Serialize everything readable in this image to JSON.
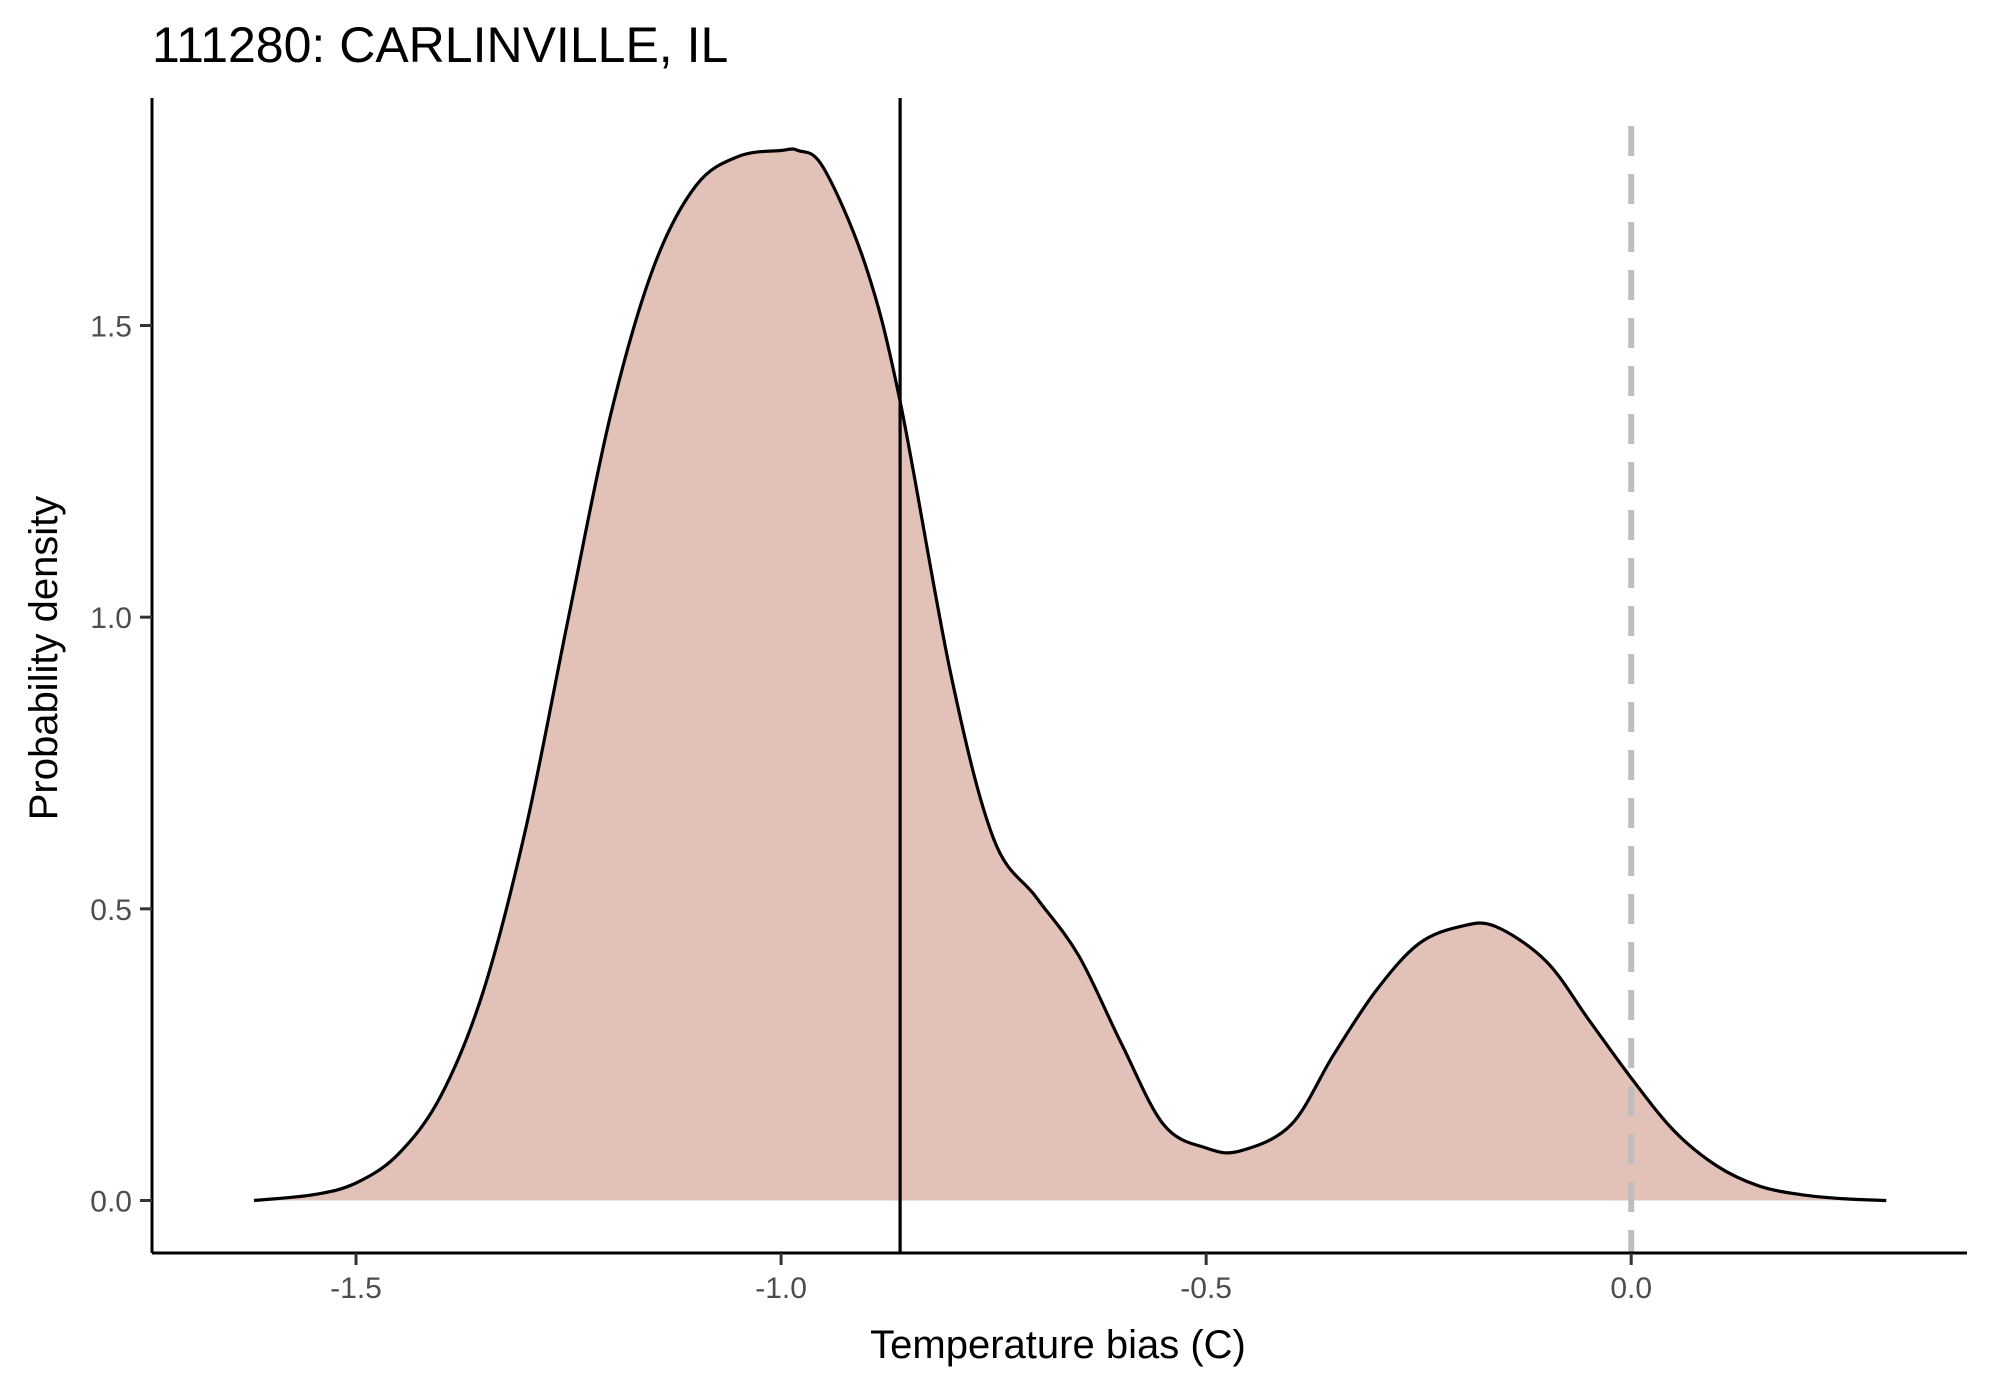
{
  "chart_data": {
    "type": "area",
    "title": "111280: CARLINVILLE, IL",
    "xlabel": "Temperature bias (C)",
    "ylabel": "Probability density",
    "xlim": [
      -1.74,
      0.395
    ],
    "ylim": [
      -0.09,
      1.89
    ],
    "x_ticks": [
      -1.5,
      -1.0,
      -0.5,
      0.0
    ],
    "x_tick_labels": [
      "-1.5",
      "-1.0",
      "-0.5",
      "0.0"
    ],
    "y_ticks": [
      0.0,
      0.5,
      1.0,
      1.5
    ],
    "y_tick_labels": [
      "0.0",
      "0.5",
      "1.0",
      "1.5"
    ],
    "grid": false,
    "fill_color": "#e2c1b8",
    "line_color": "#000000",
    "vline_solid": -0.86,
    "vline_dashed": 0.0,
    "vline_dashed_color": "#bebebe",
    "density": {
      "x": [
        -1.62,
        -1.55,
        -1.5,
        -1.45,
        -1.4,
        -1.35,
        -1.3,
        -1.25,
        -1.2,
        -1.15,
        -1.1,
        -1.05,
        -1.0,
        -0.98,
        -0.95,
        -0.9,
        -0.86,
        -0.8,
        -0.75,
        -0.7,
        -0.65,
        -0.6,
        -0.55,
        -0.5,
        -0.46,
        -0.4,
        -0.35,
        -0.3,
        -0.25,
        -0.2,
        -0.16,
        -0.1,
        -0.05,
        0.0,
        0.05,
        0.1,
        0.15,
        0.2,
        0.25,
        0.3
      ],
      "y": [
        0.0,
        0.01,
        0.03,
        0.08,
        0.18,
        0.36,
        0.64,
        1.0,
        1.35,
        1.6,
        1.74,
        1.79,
        1.8,
        1.8,
        1.77,
        1.6,
        1.37,
        0.9,
        0.62,
        0.52,
        0.42,
        0.27,
        0.13,
        0.09,
        0.085,
        0.13,
        0.25,
        0.36,
        0.44,
        0.47,
        0.47,
        0.41,
        0.31,
        0.21,
        0.12,
        0.06,
        0.025,
        0.01,
        0.003,
        0.0
      ]
    }
  }
}
